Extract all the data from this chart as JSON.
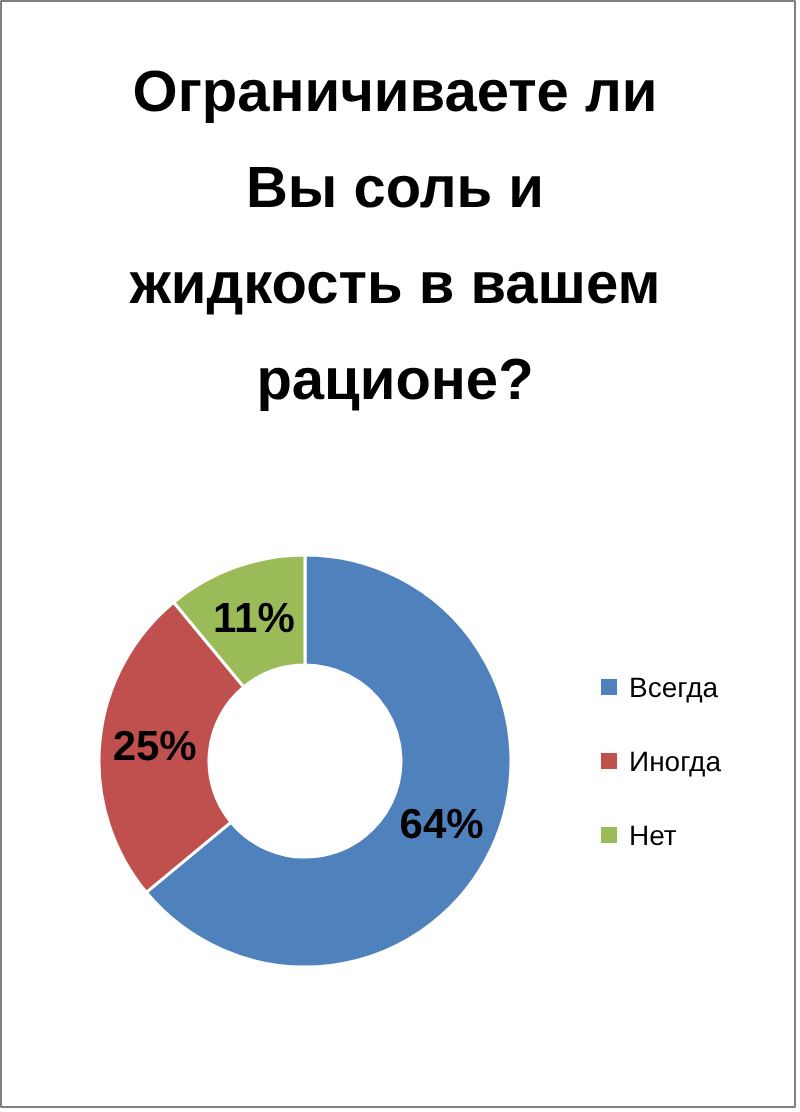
{
  "chart_data": {
    "type": "donut",
    "title": "Ограничиваете ли\nВы соль и\nжидкость в вашем\nрационе?",
    "categories": [
      "Всегда",
      "Иногда",
      "Нет"
    ],
    "values": [
      64,
      25,
      11
    ],
    "colors": [
      "#4f81bd",
      "#c0504d",
      "#9bbb59"
    ],
    "value_labels": [
      "64%",
      "25%",
      "11%"
    ],
    "legend": "right"
  }
}
